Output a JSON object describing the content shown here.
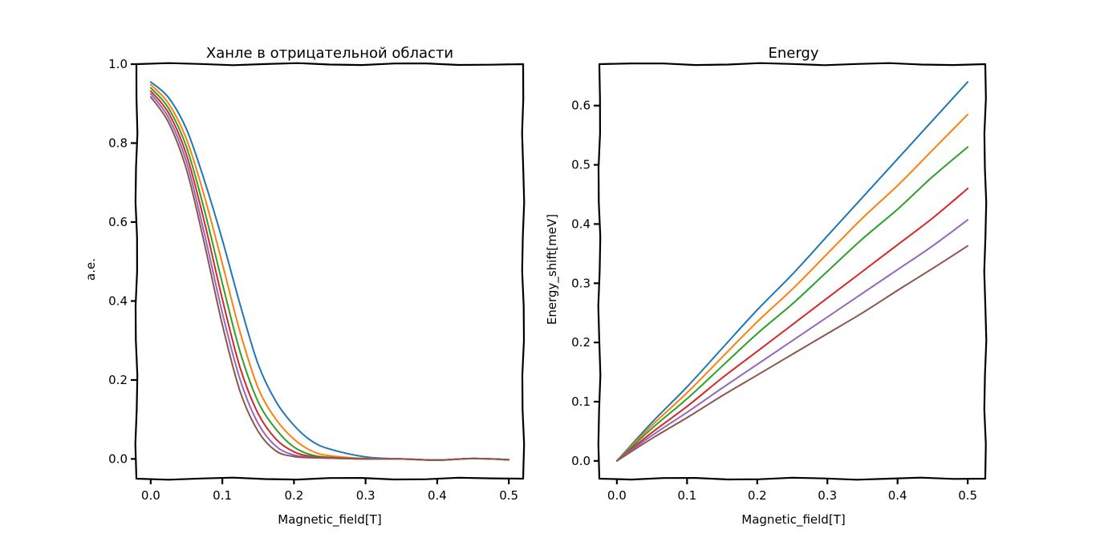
{
  "chart_data": [
    {
      "type": "line",
      "title": "Ханле в отрицательной области",
      "xlabel": "Magnetic_field[T]",
      "ylabel": "a.e.",
      "xlim": [
        -0.02,
        0.52
      ],
      "ylim": [
        -0.05,
        1.0
      ],
      "xticks": [
        "0.0",
        "0.1",
        "0.2",
        "0.3",
        "0.4",
        "0.5"
      ],
      "yticks": [
        "0.0",
        "0.2",
        "0.4",
        "0.6",
        "0.8",
        "1.0"
      ],
      "grid": false,
      "x": [
        0.0,
        0.025,
        0.05,
        0.075,
        0.1,
        0.125,
        0.15,
        0.175,
        0.2,
        0.225,
        0.25,
        0.3,
        0.35,
        0.4,
        0.45,
        0.5
      ],
      "series": [
        {
          "color": "#1f77b4",
          "values": [
            0.955,
            0.915,
            0.835,
            0.705,
            0.555,
            0.39,
            0.24,
            0.145,
            0.085,
            0.045,
            0.025,
            0.005,
            0.0,
            -0.003,
            0.001,
            -0.002
          ]
        },
        {
          "color": "#ff7f0e",
          "values": [
            0.948,
            0.9,
            0.81,
            0.665,
            0.495,
            0.32,
            0.18,
            0.1,
            0.05,
            0.02,
            0.008,
            0.001,
            0.0,
            -0.003,
            0.001,
            -0.002
          ]
        },
        {
          "color": "#2ca02c",
          "values": [
            0.94,
            0.888,
            0.79,
            0.63,
            0.445,
            0.27,
            0.145,
            0.075,
            0.03,
            0.01,
            0.004,
            0.0,
            0.0,
            -0.003,
            0.001,
            -0.002
          ]
        },
        {
          "color": "#d62728",
          "values": [
            0.932,
            0.876,
            0.77,
            0.6,
            0.405,
            0.23,
            0.115,
            0.05,
            0.018,
            0.006,
            0.003,
            0.0,
            0.0,
            -0.003,
            0.001,
            -0.002
          ]
        },
        {
          "color": "#9467bd",
          "values": [
            0.925,
            0.864,
            0.752,
            0.57,
            0.37,
            0.2,
            0.09,
            0.032,
            0.01,
            0.004,
            0.002,
            0.0,
            0.0,
            -0.003,
            0.001,
            -0.002
          ]
        },
        {
          "color": "#8c564b",
          "values": [
            0.917,
            0.852,
            0.733,
            0.545,
            0.34,
            0.17,
            0.07,
            0.02,
            0.006,
            0.003,
            0.002,
            0.0,
            0.0,
            -0.003,
            0.001,
            -0.002
          ]
        }
      ]
    },
    {
      "type": "line",
      "title": "Energy",
      "xlabel": "Magnetic_field[T]",
      "ylabel": "Energy_shift[meV]",
      "xlim": [
        -0.025,
        0.525
      ],
      "ylim": [
        -0.03,
        0.67
      ],
      "xticks": [
        "0.0",
        "0.1",
        "0.2",
        "0.3",
        "0.4",
        "0.5"
      ],
      "yticks": [
        "0.0",
        "0.1",
        "0.2",
        "0.3",
        "0.4",
        "0.5",
        "0.6"
      ],
      "grid": false,
      "x": [
        0.0,
        0.05,
        0.1,
        0.15,
        0.2,
        0.25,
        0.3,
        0.35,
        0.4,
        0.45,
        0.5
      ],
      "series": [
        {
          "color": "#1f77b4",
          "values": [
            0.0,
            0.065,
            0.125,
            0.19,
            0.255,
            0.315,
            0.38,
            0.445,
            0.51,
            0.575,
            0.64
          ]
        },
        {
          "color": "#ff7f0e",
          "values": [
            0.0,
            0.06,
            0.115,
            0.175,
            0.235,
            0.29,
            0.35,
            0.41,
            0.465,
            0.525,
            0.585
          ]
        },
        {
          "color": "#2ca02c",
          "values": [
            0.0,
            0.055,
            0.105,
            0.16,
            0.215,
            0.265,
            0.32,
            0.375,
            0.425,
            0.48,
            0.53
          ]
        },
        {
          "color": "#d62728",
          "values": [
            0.0,
            0.048,
            0.092,
            0.14,
            0.185,
            0.23,
            0.275,
            0.32,
            0.365,
            0.41,
            0.46
          ]
        },
        {
          "color": "#9467bd",
          "values": [
            0.0,
            0.043,
            0.082,
            0.123,
            0.163,
            0.203,
            0.243,
            0.283,
            0.323,
            0.363,
            0.407
          ]
        },
        {
          "color": "#8c564b",
          "values": [
            0.0,
            0.038,
            0.073,
            0.11,
            0.145,
            0.18,
            0.215,
            0.25,
            0.288,
            0.325,
            0.363
          ]
        }
      ]
    }
  ]
}
